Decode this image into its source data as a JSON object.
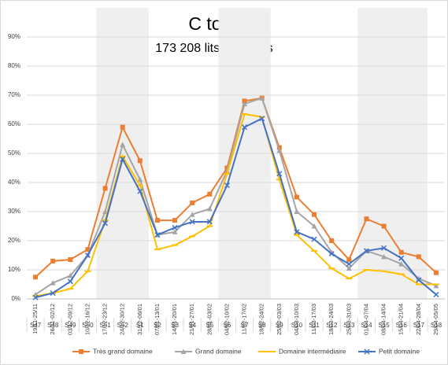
{
  "chart_data": {
    "type": "line",
    "title": "C to C",
    "subtitle": "173 208 lits analysés",
    "categories": [
      "19/11-25/11",
      "26/11-02/12",
      "03/12-09/12",
      "10/12-16/12",
      "17/12-23/12",
      "24/12-30/12",
      "31/12-06/01",
      "07/01-13/01",
      "14/01-20/01",
      "21/01-27/01",
      "28/01-03/02",
      "04/02-10/02",
      "11/02-17/02",
      "18/02-24/02",
      "25/02-03/03",
      "04/03-10/03",
      "11/03-17/03",
      "18/03-24/03",
      "25/03-31/03",
      "01/04-07/04",
      "08/04-14/04",
      "15/04-21/04",
      "22/04-28/04",
      "29/04-05/05"
    ],
    "week_labels": [
      "S47",
      "S48",
      "S49",
      "S50",
      "S51",
      "S52",
      "S1",
      "S2",
      "S3",
      "S4",
      "S5",
      "S6",
      "S7",
      "S8",
      "S9",
      "S10",
      "S11",
      "S12",
      "S13",
      "S14",
      "S15",
      "S16",
      "S17",
      "S18"
    ],
    "series": [
      {
        "name": "Très grand domaine",
        "color": "#ed7d31",
        "marker": "square",
        "values": [
          7.5,
          13,
          13.5,
          17,
          38,
          59,
          47.5,
          27,
          27,
          33,
          36,
          45,
          68,
          69,
          52,
          35,
          29,
          20,
          13.5,
          27.5,
          25,
          16,
          14.5,
          9
        ]
      },
      {
        "name": "Grand domaine",
        "color": "#a5a5a5",
        "marker": "triangle",
        "values": [
          1.5,
          5.5,
          8,
          15,
          30,
          53,
          41,
          22,
          23,
          29,
          31,
          44,
          67,
          69,
          51,
          30,
          25,
          16,
          10.5,
          16.5,
          14.5,
          12,
          7,
          4.5
        ]
      },
      {
        "name": "Domaine intermédiaire",
        "color": "#ffc000",
        "marker": "dash",
        "values": [
          1,
          2,
          3.5,
          9.5,
          27,
          49,
          39,
          17,
          18.5,
          21.5,
          25,
          43,
          63.5,
          62.5,
          41,
          22,
          16.5,
          10.5,
          7,
          10,
          9.5,
          8.5,
          5,
          5
        ]
      },
      {
        "name": "Petit domaine",
        "color": "#4472c4",
        "marker": "x",
        "values": [
          0.5,
          2,
          6,
          15,
          26,
          48,
          37,
          22,
          24.5,
          26.5,
          26.5,
          39,
          59,
          62,
          43,
          23,
          20.5,
          15.5,
          12,
          16.5,
          17.5,
          14,
          6.5,
          1.5
        ]
      }
    ],
    "ylim": [
      0,
      100
    ],
    "yticks": [
      {
        "value": 0,
        "label": "0%"
      },
      {
        "value": 10,
        "label": "10%"
      },
      {
        "value": 20,
        "label": "20%"
      },
      {
        "value": 30,
        "label": "30%"
      },
      {
        "value": 40,
        "label": "40%"
      },
      {
        "value": 50,
        "label": "50%"
      },
      {
        "value": 60,
        "label": "60%"
      },
      {
        "value": 70,
        "label": "70%"
      },
      {
        "value": 80,
        "label": "80%"
      },
      {
        "value": 90,
        "label": "90%"
      }
    ],
    "grid": true
  }
}
